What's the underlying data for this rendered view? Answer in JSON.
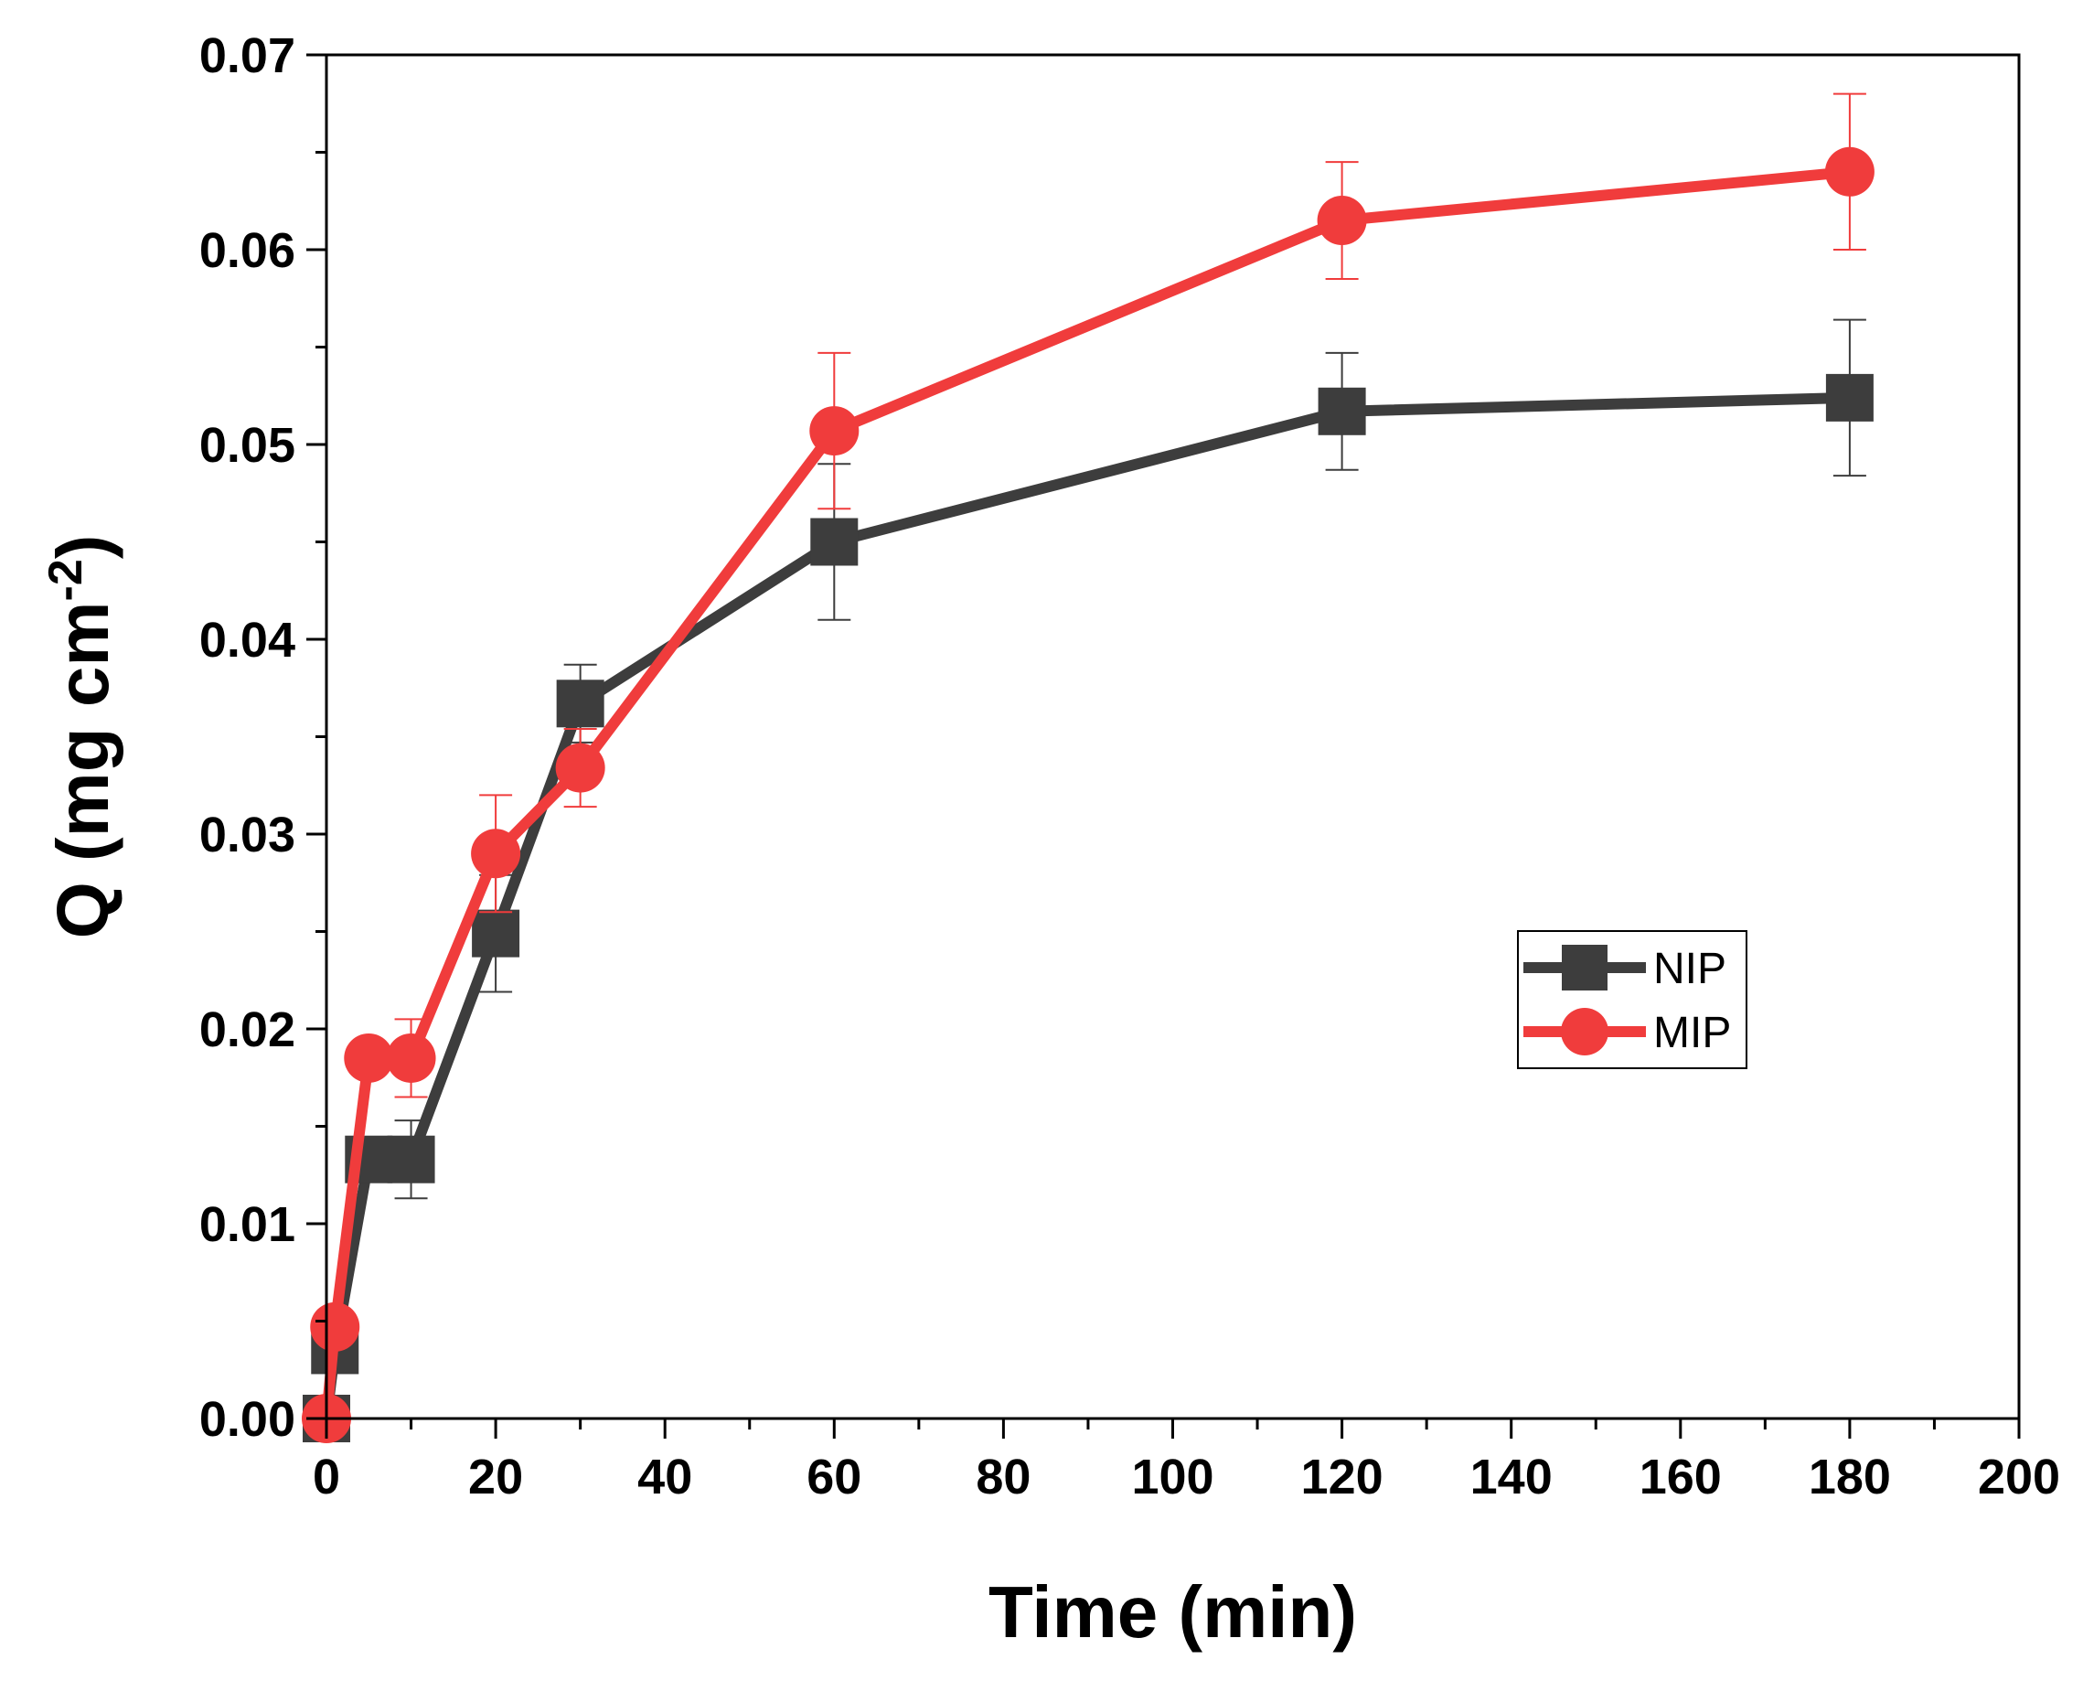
{
  "chart_data": {
    "type": "line",
    "title": "",
    "xlabel": "Time (min)",
    "ylabel": {
      "main": "Q (mg cm",
      "sup": "-2",
      "close": ")"
    },
    "xlim": [
      0,
      200
    ],
    "ylim": [
      0,
      0.07
    ],
    "x_ticks": [
      "0",
      "20",
      "40",
      "60",
      "80",
      "100",
      "120",
      "140",
      "160",
      "180",
      "200"
    ],
    "y_ticks": [
      "0.00",
      "0.01",
      "0.02",
      "0.03",
      "0.04",
      "0.05",
      "0.06",
      "0.07"
    ],
    "grid": false,
    "legend_position": "center-right",
    "series": [
      {
        "name": "NIP",
        "color": "#3d3d3d",
        "marker": "square",
        "x": [
          0,
          1,
          5,
          10,
          20,
          30,
          60,
          120,
          180
        ],
        "y": [
          0,
          0.0035,
          0.0133,
          0.0133,
          0.0249,
          0.0367,
          0.045,
          0.0517,
          0.0524
        ],
        "err": [
          0,
          0.0005,
          0.001,
          0.002,
          0.003,
          0.002,
          0.004,
          0.003,
          0.004
        ]
      },
      {
        "name": "MIP",
        "color": "#f03c3c",
        "marker": "circle",
        "x": [
          0,
          1,
          5,
          10,
          20,
          30,
          60,
          120,
          180
        ],
        "y": [
          0,
          0.0047,
          0.0185,
          0.0185,
          0.029,
          0.0334,
          0.0507,
          0.0615,
          0.064
        ],
        "err": [
          0,
          0.0003,
          0.0007,
          0.002,
          0.003,
          0.002,
          0.004,
          0.003,
          0.004
        ]
      }
    ]
  }
}
